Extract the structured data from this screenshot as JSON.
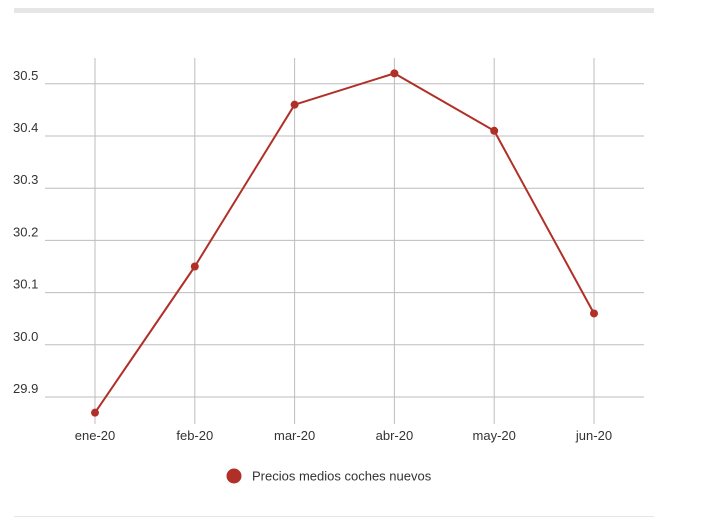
{
  "chart_data": {
    "type": "line",
    "title": "",
    "xlabel": "",
    "ylabel": "",
    "categories": [
      "ene-20",
      "feb-20",
      "mar-20",
      "abr-20",
      "may-20",
      "jun-20"
    ],
    "series": [
      {
        "name": "Precios medios coches nuevos",
        "values": [
          29.87,
          30.15,
          30.46,
          30.52,
          30.41,
          30.06
        ],
        "color": "#b03028"
      }
    ],
    "yticks": [
      "29.9",
      "30.0",
      "30.1",
      "30.2",
      "30.3",
      "30.4",
      "30.5"
    ],
    "ylim": [
      29.85,
      30.55
    ],
    "grid": true,
    "legend_position": "bottom-center"
  }
}
